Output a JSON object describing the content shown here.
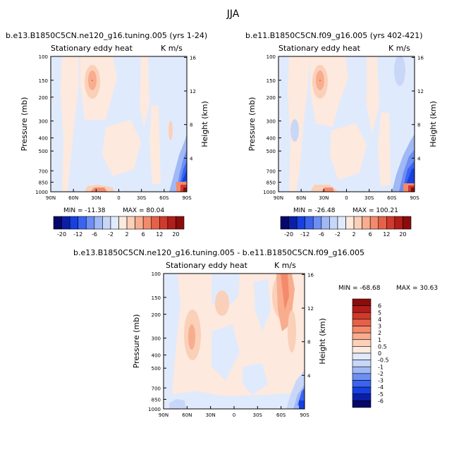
{
  "page_title": "JJA",
  "panels": [
    {
      "title": "b.e13.B1850C5CN.ne120_g16.tuning.005 (yrs 1-24)",
      "left_label": "Stationary eddy heat",
      "right_label": "K m/s",
      "min_label": "MIN = -11.38",
      "max_label": "MAX = 80.04"
    },
    {
      "title": "b.e11.B1850C5CN.f09_g16.005 (yrs 402-421)",
      "left_label": "Stationary eddy heat",
      "right_label": "K m/s",
      "min_label": "MIN = -26.48",
      "max_label": "MAX = 100.21"
    },
    {
      "title": "b.e13.B1850C5CN.ne120_g16.tuning.005 - b.e11.B1850C5CN.f09_g16.005",
      "left_label": "Stationary eddy heat",
      "right_label": "K m/s",
      "min_label": "MIN = -68.68",
      "max_label": "MAX = 30.63"
    }
  ],
  "chart_data": [
    {
      "type": "heatmap",
      "title": "b.e13.B1850C5CN.ne120_g16.tuning.005 (yrs 1-24)",
      "xlabel": "",
      "ylabel": "Pressure (mb)",
      "y2label": "Height (km)",
      "x_ticks": [
        "90N",
        "60N",
        "30N",
        "0",
        "30S",
        "60S",
        "90S"
      ],
      "y_ticks": [
        "100",
        "150",
        "200",
        "300",
        "400",
        "500",
        "700",
        "850",
        "1000"
      ],
      "y2_ticks": [
        "16",
        "12",
        "8",
        "4"
      ],
      "min": -11.38,
      "max": 80.04,
      "features": [
        {
          "desc": "positive maximum near 30N 150 mb",
          "lat": 35,
          "p": 150,
          "value": 8
        },
        {
          "desc": "strong negative near 70-90S lower troposphere",
          "lat": -82,
          "p": 800,
          "value": -15
        },
        {
          "desc": "strong positive at 90S near surface",
          "lat": -88,
          "p": 1000,
          "value": 20
        }
      ]
    },
    {
      "type": "heatmap",
      "title": "b.e11.B1850C5CN.f09_g16.005 (yrs 402-421)",
      "xlabel": "",
      "ylabel": "Pressure (mb)",
      "y2label": "Height (km)",
      "x_ticks": [
        "90N",
        "60N",
        "30N",
        "0",
        "30S",
        "60S",
        "90S"
      ],
      "y_ticks": [
        "100",
        "150",
        "200",
        "300",
        "400",
        "500",
        "700",
        "850",
        "1000"
      ],
      "y2_ticks": [
        "16",
        "12",
        "8",
        "4"
      ],
      "min": -26.48,
      "max": 100.21,
      "features": [
        {
          "desc": "positive maximum near 30N 150 mb",
          "lat": 35,
          "p": 150,
          "value": 7
        },
        {
          "desc": "negative near 60S upper troposphere",
          "lat": -62,
          "p": 100,
          "value": -2
        },
        {
          "desc": "strong negative near 70-90S lower troposphere",
          "lat": -80,
          "p": 800,
          "value": -18
        },
        {
          "desc": "strong positive at 90S near surface",
          "lat": -88,
          "p": 1000,
          "value": 20
        }
      ]
    },
    {
      "type": "heatmap",
      "title": "b.e13.B1850C5CN.ne120_g16.tuning.005 - b.e11.B1850C5CN.f09_g16.005",
      "xlabel": "",
      "ylabel": "Pressure (mb)",
      "y2label": "Height (km)",
      "x_ticks": [
        "90N",
        "60N",
        "30N",
        "0",
        "30S",
        "60S",
        "90S"
      ],
      "y_ticks": [
        "100",
        "150",
        "200",
        "300",
        "400",
        "500",
        "700",
        "850",
        "1000"
      ],
      "y2_ticks": [
        "16",
        "12",
        "8",
        "4"
      ],
      "min": -68.68,
      "max": 30.63,
      "features": [
        {
          "desc": "positive near 60S upper troposphere",
          "lat": -60,
          "p": 120,
          "value": 2
        },
        {
          "desc": "positive near 60-70N mid troposphere",
          "lat": 65,
          "p": 300,
          "value": 1
        },
        {
          "desc": "negative near 90S near surface",
          "lat": -88,
          "p": 900,
          "value": -4
        }
      ]
    }
  ],
  "colorbar_top": {
    "labels": [
      "-20",
      "-12",
      "-6",
      "-2",
      "2",
      "6",
      "12",
      "20"
    ],
    "colors": [
      "#06066b",
      "#0a1fa6",
      "#1740e0",
      "#3a64f0",
      "#6d8ef2",
      "#a0b8f5",
      "#c8d7f8",
      "#e0eafd",
      "#fde9dd",
      "#fbd0b8",
      "#f8ad8e",
      "#f48a6c",
      "#e6614a",
      "#d03a2c",
      "#b21d1a",
      "#8c0c0c"
    ]
  },
  "colorbar_diff": {
    "labels": [
      "6",
      "5",
      "4",
      "3",
      "2",
      "1",
      "0.5",
      "0",
      "-0.5",
      "-1",
      "-2",
      "-3",
      "-4",
      "-5",
      "-6"
    ],
    "colors": [
      "#8c0c0c",
      "#b21d1a",
      "#d03a2c",
      "#e6614a",
      "#f48a6c",
      "#f8ad8e",
      "#fbd0b8",
      "#fde9dd",
      "#e0eafd",
      "#c8d7f8",
      "#a0b8f5",
      "#6d8ef2",
      "#3a64f0",
      "#1740e0",
      "#0a1fa6",
      "#06066b"
    ]
  }
}
